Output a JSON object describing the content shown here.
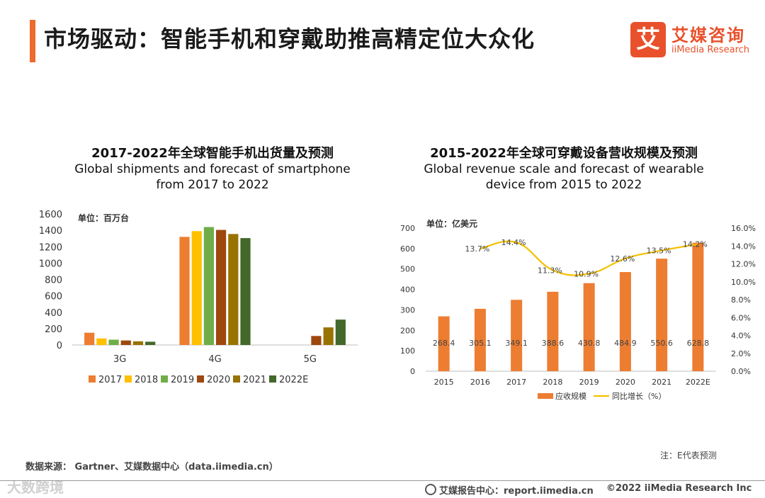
{
  "header": {
    "title": "市场驱动：智能手机和穿戴助推高精定位大众化",
    "logo_char": "艾",
    "logo_cn": "艾媒咨询",
    "logo_en": "iiMedia Research"
  },
  "colors": {
    "accent": "#ec6b2d",
    "c2017": "#ed7d31",
    "c2018": "#ffc000",
    "c2019": "#70ad47",
    "c2020": "#9e480e",
    "c2021": "#997300",
    "c2022": "#43682b",
    "bar2": "#ed7d31",
    "line2": "#f5c000"
  },
  "chart1": {
    "title_cn": "2017-2022年全球智能手机出货量及预测",
    "title_en_1": "Global shipments and forecast of smartphone",
    "title_en_2": "from 2017 to 2022",
    "unit": "单位：百万台"
  },
  "chart2": {
    "title_cn": "2015-2022年全球可穿戴设备营收规模及预测",
    "title_en_1": "Global revenue scale and forecast of wearable",
    "title_en_2": "device from 2015 to 2022",
    "unit": "单位：亿美元"
  },
  "chart_data": [
    {
      "type": "bar",
      "title": "2017-2022年全球智能手机出货量及预测",
      "categories": [
        "3G",
        "4G",
        "5G"
      ],
      "ylim": [
        0,
        1600
      ],
      "yticks": [
        0,
        200,
        400,
        600,
        800,
        1000,
        1200,
        1400,
        1600
      ],
      "series": [
        {
          "name": "2017",
          "values": [
            150,
            1320,
            0
          ]
        },
        {
          "name": "2018",
          "values": [
            80,
            1390,
            0
          ]
        },
        {
          "name": "2019",
          "values": [
            65,
            1440,
            0
          ]
        },
        {
          "name": "2020",
          "values": [
            55,
            1405,
            110
          ]
        },
        {
          "name": "2021",
          "values": [
            45,
            1355,
            215
          ]
        },
        {
          "name": "2022E",
          "values": [
            40,
            1305,
            310
          ]
        }
      ],
      "legend": "bottom"
    },
    {
      "type": "bar",
      "title": "2015-2022年全球可穿戴设备营收规模及预测",
      "categories": [
        "2015",
        "2016",
        "2017",
        "2018",
        "2019",
        "2020",
        "2021",
        "2022E"
      ],
      "ylim": [
        0,
        700
      ],
      "yticks": [
        0,
        100,
        200,
        300,
        400,
        500,
        600,
        700
      ],
      "y2lim": [
        0,
        16
      ],
      "y2ticks": [
        "0.0%",
        "2.0%",
        "4.0%",
        "6.0%",
        "8.0%",
        "10.0%",
        "12.0%",
        "14.0%",
        "16.0%"
      ],
      "series": [
        {
          "name": "应收规模",
          "type": "bar",
          "values": [
            268.4,
            305.1,
            349.1,
            388.6,
            430.8,
            484.9,
            550.6,
            628.8
          ],
          "labels": [
            "268.4",
            "305.1",
            "349.1",
            "388.6",
            "430.8",
            "484.9",
            "550.6",
            "628.8"
          ]
        },
        {
          "name": "同比增长（%）",
          "type": "line",
          "axis": "right",
          "values": [
            null,
            13.7,
            14.4,
            11.3,
            10.9,
            12.6,
            13.5,
            14.2
          ],
          "labels": [
            "",
            "13.7%",
            "14.4%",
            "11.3%",
            "10.9%",
            "12.6%",
            "13.5%",
            "14.2%"
          ]
        }
      ],
      "legend": "bottom"
    }
  ],
  "footer": {
    "source": "数据来源： Gartner、艾媒数据中心（data.iimedia.cn）",
    "note": "注：E代表预测",
    "center": "艾媒报告中心：report.iimedia.cn",
    "copyright": "©2022  iiMedia Research  Inc",
    "watermark": "大数跨境"
  }
}
